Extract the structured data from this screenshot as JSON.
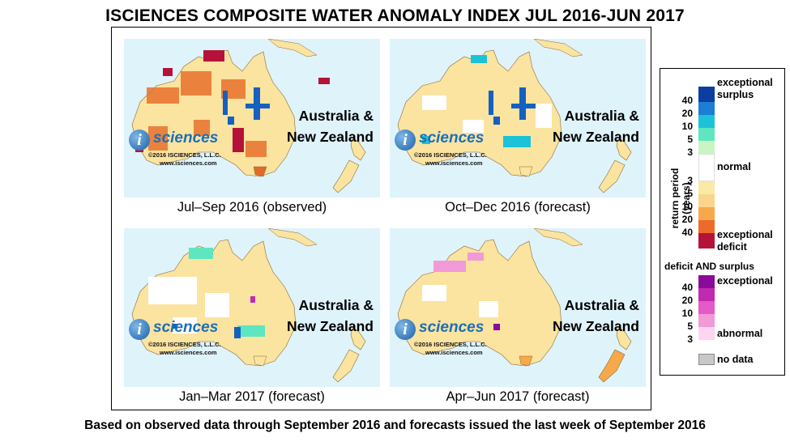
{
  "title": "ISCIENCES COMPOSITE WATER ANOMALY INDEX JUL 2016-JUN 2017",
  "footer": "Based on observed data through September 2016 and forecasts issued the last week of September 2016",
  "region_label": [
    "Australia &",
    "New Zealand"
  ],
  "logo": {
    "word": "sciences",
    "mark": "i",
    "copyright": "©2016  ISCIENCES, L.L.C.",
    "url": "www.isciences.com"
  },
  "panels": [
    {
      "caption": "Jul–Sep 2016 (observed)"
    },
    {
      "caption": "Oct–Dec 2016 (forecast)"
    },
    {
      "caption": "Jan–Mar 2017 (forecast)"
    },
    {
      "caption": "Apr–Jun 2017 (forecast)"
    }
  ],
  "legend": {
    "axis_label": "return period (years)",
    "surplus_ticks": [
      "40",
      "20",
      "10",
      "5",
      "3"
    ],
    "deficit_ticks": [
      "3",
      "5",
      "10",
      "20",
      "40"
    ],
    "both_ticks": [
      "40",
      "20",
      "10",
      "5",
      "3"
    ],
    "exceptional_surplus": [
      "exceptional",
      "surplus"
    ],
    "normal": "normal",
    "exceptional_deficit": [
      "exceptional",
      "deficit"
    ],
    "both_heading": "deficit AND surplus",
    "both_exceptional": "exceptional",
    "both_abnormal": "abnormal",
    "no_data": "no data"
  },
  "colors": {
    "ocean": "#dff3fb",
    "surplus": [
      "#0b3e9e",
      "#1b7fd6",
      "#1cc2d8",
      "#5ee6c0",
      "#c9f5c4"
    ],
    "normal": "#ffffff",
    "deficit": [
      "#fbe9a6",
      "#fbd58a",
      "#f7a84a",
      "#ee6a2a",
      "#b5123a"
    ],
    "both": [
      "#8a0a9a",
      "#c02ab0",
      "#e35ac8",
      "#f29ad8",
      "#fbd6ee"
    ],
    "no_data": "#c8c8c8"
  }
}
